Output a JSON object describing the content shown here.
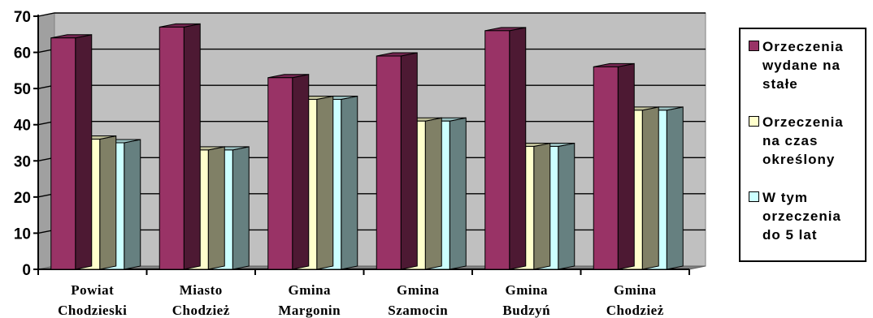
{
  "chart_data": {
    "type": "bar",
    "style": "3d-clustered",
    "categories": [
      [
        "Powiat",
        "Chodzieski"
      ],
      [
        "Miasto",
        "Chodzież"
      ],
      [
        "Gmina",
        "Margonin"
      ],
      [
        "Gmina",
        "Szamocin"
      ],
      [
        "Gmina",
        "Budzyń"
      ],
      [
        "Gmina",
        "Chodzież"
      ]
    ],
    "series": [
      {
        "name": "Orzeczenia wydane na stałe",
        "values": [
          64,
          67,
          53,
          59,
          66,
          56
        ],
        "color_front": "#993366",
        "color_side": "#4d1933",
        "color_top": "#732650"
      },
      {
        "name": "Orzeczenia na czas określony",
        "values": [
          36,
          33,
          47,
          41,
          34,
          44
        ],
        "color_front": "#ffffcc",
        "color_side": "#808066",
        "color_top": "#bfbf99"
      },
      {
        "name": "W tym orzeczenia do 5 lat",
        "values": [
          35,
          33,
          47,
          41,
          34,
          44
        ],
        "color_front": "#ccffff",
        "color_side": "#668080",
        "color_top": "#99bfbf"
      }
    ],
    "ylim": [
      0,
      70
    ],
    "yticks": [
      0,
      10,
      20,
      30,
      40,
      50,
      60,
      70
    ],
    "grid": true,
    "legend_position": "right",
    "wall_color": "#c0c0c0"
  },
  "legend": {
    "items": [
      {
        "lines": [
          "Orzeczenia",
          "wydane na",
          "stałe"
        ],
        "color": "#993366"
      },
      {
        "lines": [
          "Orzeczenia",
          "na czas",
          "określony"
        ],
        "color": "#ffffcc"
      },
      {
        "lines": [
          "W tym",
          "orzeczenia",
          "do 5 lat"
        ],
        "color": "#ccffff"
      }
    ]
  }
}
